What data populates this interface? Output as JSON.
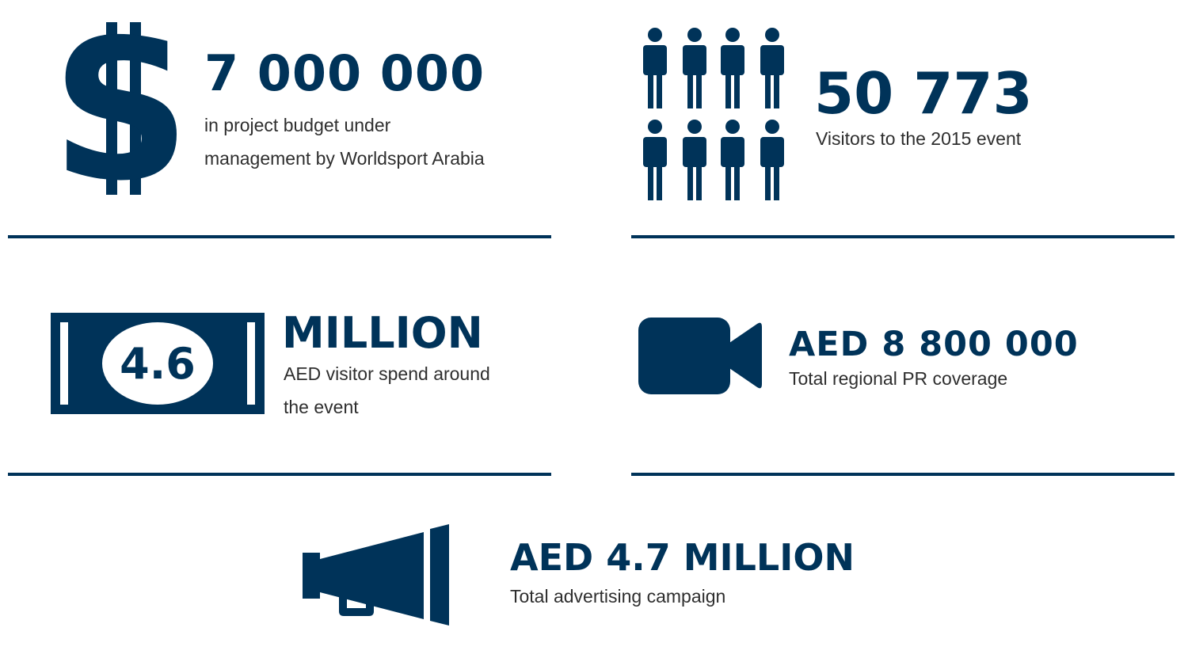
{
  "colors": {
    "accent": "#003359",
    "text": "#2e2e2e",
    "background": "#ffffff"
  },
  "stats": {
    "budget": {
      "icon": "dollar-sign-icon",
      "value": "7 000 000",
      "desc_line1": "in project budget under",
      "desc_line2": "management by Worldsport Arabia"
    },
    "visitors": {
      "icon": "people-icon",
      "value": "50 773",
      "desc": "Visitors to the 2015 event"
    },
    "spend": {
      "icon": "banknote-icon",
      "banknote_value": "4.6",
      "value": "MILLION",
      "desc_line1": "AED visitor spend around",
      "desc_line2": "the event"
    },
    "pr": {
      "icon": "video-camera-icon",
      "value": "AED 8 800 000",
      "desc": "Total regional PR coverage"
    },
    "advertising": {
      "icon": "megaphone-icon",
      "value": "AED 4.7 MILLION",
      "desc": "Total advertising campaign"
    }
  }
}
